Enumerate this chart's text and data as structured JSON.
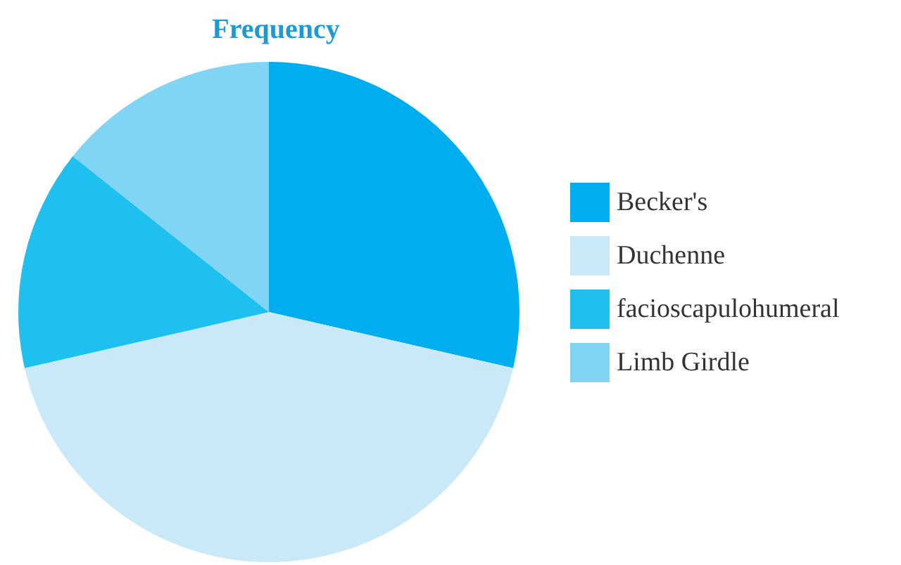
{
  "chart_data": {
    "type": "pie",
    "title": "Frequency",
    "categories": [
      "Becker's",
      "Duchenne",
      "facioscapulohumeral",
      "Limb Girdle"
    ],
    "values": [
      28.6,
      42.8,
      14.3,
      14.3
    ],
    "colors": [
      "#00aeef",
      "#c9e8f8",
      "#1ec0f0",
      "#80d4f4"
    ],
    "legend": "right"
  }
}
